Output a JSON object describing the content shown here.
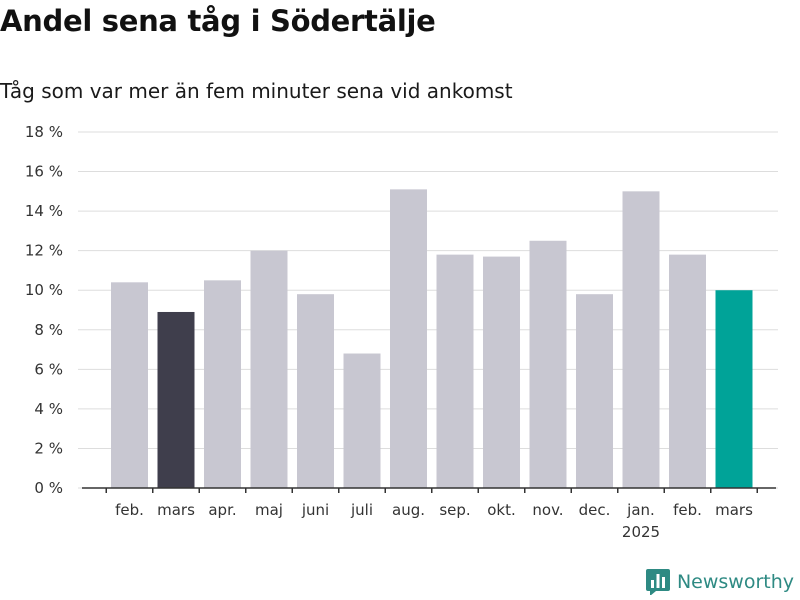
{
  "header": {
    "title": "Andel sena tåg i Södertälje",
    "subtitle": "Tåg som var mer än fem minuter sena vid ankomst"
  },
  "brand": {
    "name": "Newsworthy",
    "icon": "bar-chart-logo-icon",
    "color": "#2e8a83"
  },
  "chart_data": {
    "type": "bar",
    "categories": [
      "feb.",
      "mars",
      "apr.",
      "maj",
      "juni",
      "juli",
      "aug.",
      "sep.",
      "okt.",
      "nov.",
      "dec.",
      "jan.",
      "feb.",
      "mars"
    ],
    "category_sublabels": [
      "",
      "",
      "",
      "",
      "",
      "",
      "",
      "",
      "",
      "",
      "",
      "2025",
      "",
      ""
    ],
    "values": [
      10.4,
      8.9,
      10.5,
      12.0,
      9.8,
      6.8,
      15.1,
      11.8,
      11.7,
      12.5,
      9.8,
      15.0,
      11.8,
      10.0
    ],
    "colors": {
      "default": "#c8c7d1",
      "previous_year": "#3f3e4c",
      "current": "#00a398",
      "grid": "#dddddd",
      "axis": "#333333"
    },
    "highlight": {
      "previous_year_index": 1,
      "current_index": 13
    },
    "ylim": [
      0,
      18
    ],
    "yticks": [
      0,
      2,
      4,
      6,
      8,
      10,
      12,
      14,
      16,
      18
    ],
    "ytick_suffix": " %",
    "grid": true,
    "xlabel": "",
    "ylabel": ""
  }
}
